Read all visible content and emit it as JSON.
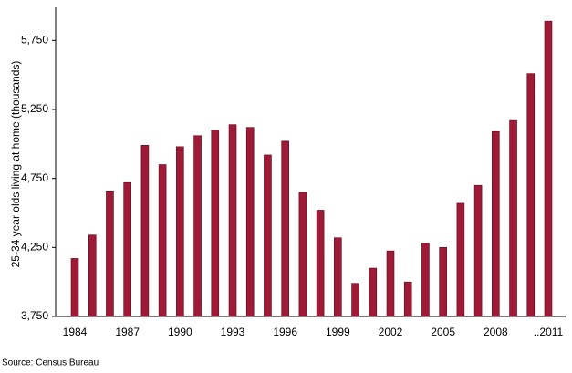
{
  "chart_data": {
    "type": "bar",
    "y_axis_label": "25-34 year olds living at home (thousands)",
    "source": "Source: Census Bureau",
    "categories": [
      "1984",
      null,
      null,
      "1987",
      null,
      null,
      "1990",
      null,
      null,
      "1993",
      null,
      null,
      "1996",
      null,
      null,
      "1999",
      null,
      null,
      "2002",
      null,
      null,
      "2005",
      null,
      null,
      "2008",
      null,
      null,
      "..2011"
    ],
    "values": [
      4170,
      4340,
      4660,
      4720,
      4990,
      4850,
      4980,
      5060,
      5100,
      5140,
      5120,
      4920,
      5020,
      4650,
      4520,
      4320,
      3990,
      4100,
      4225,
      4000,
      4280,
      4250,
      4570,
      4700,
      5090,
      5170,
      5510,
      5890
    ],
    "color": "#9e1a36",
    "ylim": [
      3750,
      5990
    ],
    "yticks": [
      {
        "value": 3750,
        "label": "3,750"
      },
      {
        "value": 4250,
        "label": "4,250"
      },
      {
        "value": 4750,
        "label": "4,750"
      },
      {
        "value": 5250,
        "label": "5,250"
      },
      {
        "value": 5750,
        "label": "5,750"
      }
    ],
    "grid": false
  }
}
